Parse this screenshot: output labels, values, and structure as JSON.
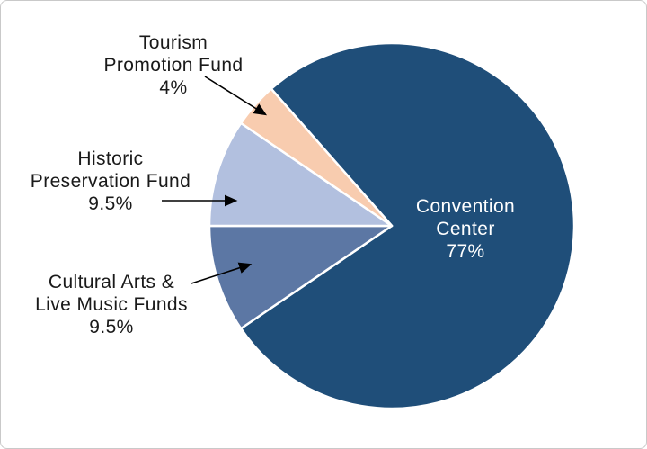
{
  "chart_data": {
    "type": "pie",
    "title": "",
    "legend": "none",
    "direction": "clockwise",
    "start_angle_deg": 318.6,
    "total": 100,
    "stroke_color": "#FFFFFF",
    "callout_arrow_color": "#000000",
    "background_color": "#FFFFFF",
    "frame_border_color": "#C9C9C9",
    "slices": [
      {
        "name": "Convention Center",
        "value": 77,
        "percent_label": "77%",
        "color": "#1F4E79",
        "label_color": "#FFFFFF",
        "label_position": "inside",
        "label_lines": [
          "Convention",
          "Center",
          "77%"
        ]
      },
      {
        "name": "Cultural Arts & Live Music Funds",
        "value": 9.5,
        "percent_label": "9.5%",
        "color": "#5C77A4",
        "label_color": "#1A1A1A",
        "label_position": "outside-left",
        "label_lines": [
          "Cultural Arts &",
          "Live Music Funds",
          "9.5%"
        ]
      },
      {
        "name": "Historic Preservation Fund",
        "value": 9.5,
        "percent_label": "9.5%",
        "color": "#B2C0DF",
        "label_color": "#1A1A1A",
        "label_position": "outside-left",
        "label_lines": [
          "Historic",
          "Preservation Fund",
          "9.5%"
        ]
      },
      {
        "name": "Tourism Promotion Fund",
        "value": 4,
        "percent_label": "4%",
        "color": "#F8CCAF",
        "label_color": "#1A1A1A",
        "label_position": "outside-left",
        "label_lines": [
          "Tourism",
          "Promotion Fund",
          "4%"
        ]
      }
    ]
  }
}
